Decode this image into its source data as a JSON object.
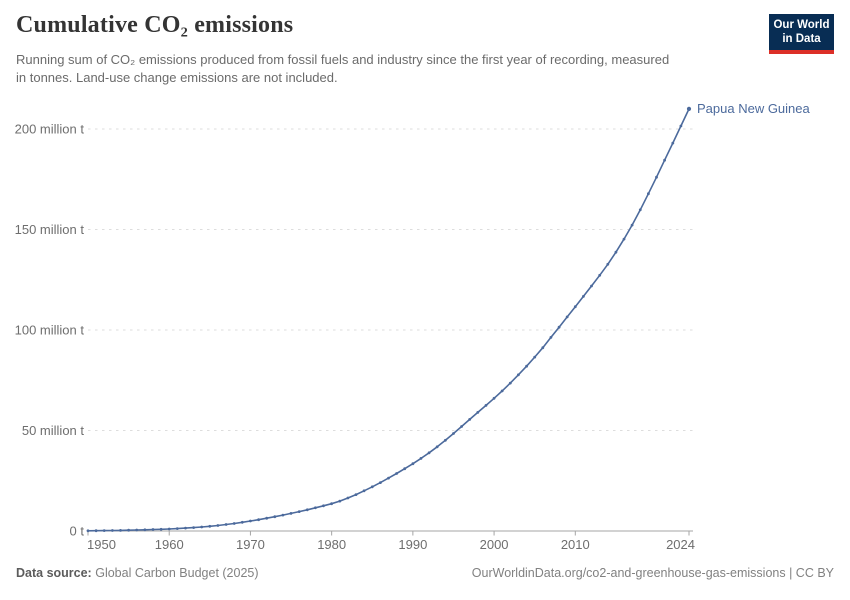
{
  "header": {
    "title": "Cumulative CO₂ emissions",
    "subtitle": "Running sum of CO₂ emissions produced from fossil fuels and industry since the first year of recording, measured in tonnes. Land-use change emissions are not included.",
    "logo": {
      "line1": "Our World",
      "line2": "in Data",
      "bg_color": "#082d54",
      "accent_color": "#dc2f27"
    }
  },
  "chart_data": {
    "type": "line",
    "title": "Cumulative CO₂ emissions",
    "xlabel": "",
    "ylabel": "",
    "values_unit": "million tonnes of CO₂",
    "grid": "horizontal dashed",
    "legend_position": "end-of-line label",
    "xlim": [
      1950,
      2024
    ],
    "ylim": [
      0,
      210
    ],
    "x_ticks": [
      1950,
      1960,
      1970,
      1980,
      1990,
      2000,
      2010,
      2024
    ],
    "y_ticks": [
      0,
      50,
      100,
      150,
      200
    ],
    "y_tick_labels": [
      "0 t",
      "50 million t",
      "100 million t",
      "150 million t",
      "200 million t"
    ],
    "series": [
      {
        "name": "Papua New Guinea",
        "color": "#4c6a9c",
        "years": [
          1950,
          1951,
          1952,
          1953,
          1954,
          1955,
          1956,
          1957,
          1958,
          1959,
          1960,
          1961,
          1962,
          1963,
          1964,
          1965,
          1966,
          1967,
          1968,
          1969,
          1970,
          1971,
          1972,
          1973,
          1974,
          1975,
          1976,
          1977,
          1978,
          1979,
          1980,
          1981,
          1982,
          1983,
          1984,
          1985,
          1986,
          1987,
          1988,
          1989,
          1990,
          1991,
          1992,
          1993,
          1994,
          1995,
          1996,
          1997,
          1998,
          1999,
          2000,
          2001,
          2002,
          2003,
          2004,
          2005,
          2006,
          2007,
          2008,
          2009,
          2010,
          2011,
          2012,
          2013,
          2014,
          2015,
          2016,
          2017,
          2018,
          2019,
          2020,
          2021,
          2022,
          2023,
          2024
        ],
        "values": [
          0.1,
          0.14,
          0.19,
          0.25,
          0.32,
          0.4,
          0.5,
          0.61,
          0.73,
          0.86,
          1.0,
          1.2,
          1.43,
          1.7,
          2.01,
          2.36,
          2.76,
          3.22,
          3.74,
          4.32,
          4.96,
          5.64,
          6.36,
          7.12,
          7.92,
          8.76,
          9.64,
          10.56,
          11.52,
          12.52,
          13.6,
          14.9,
          16.4,
          18.1,
          20.0,
          22.0,
          24.1,
          26.3,
          28.6,
          31.0,
          33.5,
          36.1,
          38.9,
          41.9,
          45.1,
          48.5,
          52.0,
          55.5,
          59.0,
          62.5,
          66.0,
          69.7,
          73.6,
          77.7,
          82.0,
          86.5,
          91.2,
          96.3,
          101.4,
          106.5,
          111.6,
          116.7,
          121.9,
          127.2,
          132.7,
          138.7,
          145.2,
          152.2,
          159.8,
          167.8,
          176.0,
          184.5,
          193.0,
          201.5,
          210.0
        ]
      }
    ]
  },
  "footer": {
    "source_label": "Data source:",
    "source_value": "Global Carbon Budget (2025)",
    "attribution": "OurWorldinData.org/co2-and-greenhouse-gas-emissions | CC BY"
  }
}
